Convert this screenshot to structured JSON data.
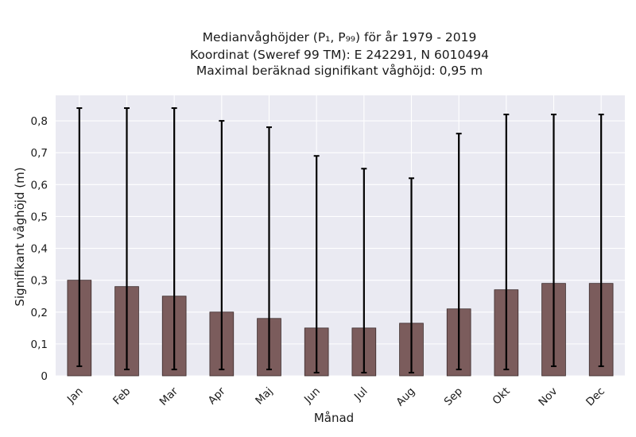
{
  "chart_data": {
    "type": "bar",
    "title_lines": [
      "Medianvåghöjder (P₁, P₉₉) för år 1979 - 2019",
      "Koordinat (Sweref 99 TM): E 242291, N 6010494",
      "Maximal beräknad signifikant våghöjd: 0,95 m"
    ],
    "xlabel": "Månad",
    "ylabel": "Signifikant våghöjd (m)",
    "categories": [
      "Jan",
      "Feb",
      "Mar",
      "Apr",
      "Maj",
      "Jun",
      "Jul",
      "Aug",
      "Sep",
      "Okt",
      "Nov",
      "Dec"
    ],
    "values": [
      0.3,
      0.28,
      0.25,
      0.2,
      0.18,
      0.15,
      0.15,
      0.165,
      0.21,
      0.27,
      0.29,
      0.29
    ],
    "err_low": [
      0.03,
      0.02,
      0.02,
      0.02,
      0.02,
      0.01,
      0.01,
      0.01,
      0.02,
      0.02,
      0.03,
      0.03
    ],
    "err_high": [
      0.84,
      0.84,
      0.84,
      0.8,
      0.78,
      0.69,
      0.65,
      0.62,
      0.76,
      0.82,
      0.82,
      0.82
    ],
    "ylim": [
      0,
      0.88
    ],
    "yticks": [
      0,
      0.1,
      0.2,
      0.3,
      0.4,
      0.5,
      0.6,
      0.7,
      0.8
    ],
    "ytick_labels": [
      "0",
      "0,1",
      "0,2",
      "0,3",
      "0,4",
      "0,5",
      "0,6",
      "0,7",
      "0,8"
    ],
    "grid": true,
    "colors": {
      "bar_fill": "#7b5c5c",
      "bar_edge": "#3a2a2a",
      "error_bar": "#000000",
      "plot_background": "#eaeaf2",
      "grid": "#ffffff"
    }
  }
}
